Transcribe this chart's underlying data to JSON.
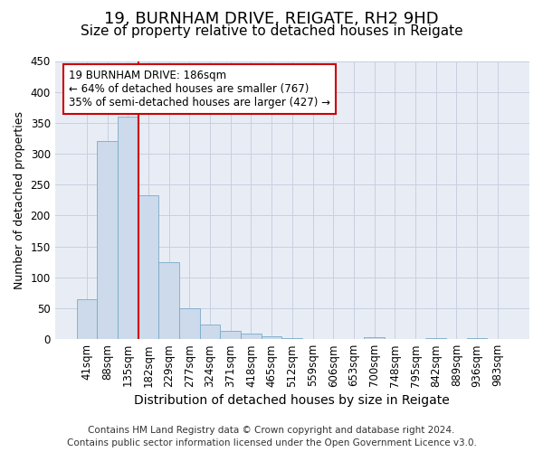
{
  "title1": "19, BURNHAM DRIVE, REIGATE, RH2 9HD",
  "title2": "Size of property relative to detached houses in Reigate",
  "xlabel": "Distribution of detached houses by size in Reigate",
  "ylabel": "Number of detached properties",
  "categories": [
    "41sqm",
    "88sqm",
    "135sqm",
    "182sqm",
    "229sqm",
    "277sqm",
    "324sqm",
    "371sqm",
    "418sqm",
    "465sqm",
    "512sqm",
    "559sqm",
    "606sqm",
    "653sqm",
    "700sqm",
    "748sqm",
    "795sqm",
    "842sqm",
    "889sqm",
    "936sqm",
    "983sqm"
  ],
  "values": [
    65,
    320,
    360,
    233,
    125,
    50,
    23,
    13,
    9,
    5,
    2,
    0,
    0,
    0,
    3,
    0,
    0,
    2,
    0,
    2,
    0
  ],
  "bar_color": "#ccdaeb",
  "bar_edge_color": "#7aaac8",
  "vline_color": "#cc0000",
  "vline_pos": 3.5,
  "ylim": [
    0,
    450
  ],
  "yticks": [
    0,
    50,
    100,
    150,
    200,
    250,
    300,
    350,
    400,
    450
  ],
  "annotation_title": "19 BURNHAM DRIVE: 186sqm",
  "annotation_line1": "← 64% of detached houses are smaller (767)",
  "annotation_line2": "35% of semi-detached houses are larger (427) →",
  "annotation_box_color": "#ffffff",
  "annotation_border_color": "#cc0000",
  "footer1": "Contains HM Land Registry data © Crown copyright and database right 2024.",
  "footer2": "Contains public sector information licensed under the Open Government Licence v3.0.",
  "grid_color": "#c8cfe0",
  "background_color": "#e8edf5",
  "title1_fontsize": 13,
  "title2_fontsize": 11,
  "xlabel_fontsize": 10,
  "ylabel_fontsize": 9,
  "tick_fontsize": 8.5,
  "annotation_fontsize": 8.5,
  "footer_fontsize": 7.5
}
